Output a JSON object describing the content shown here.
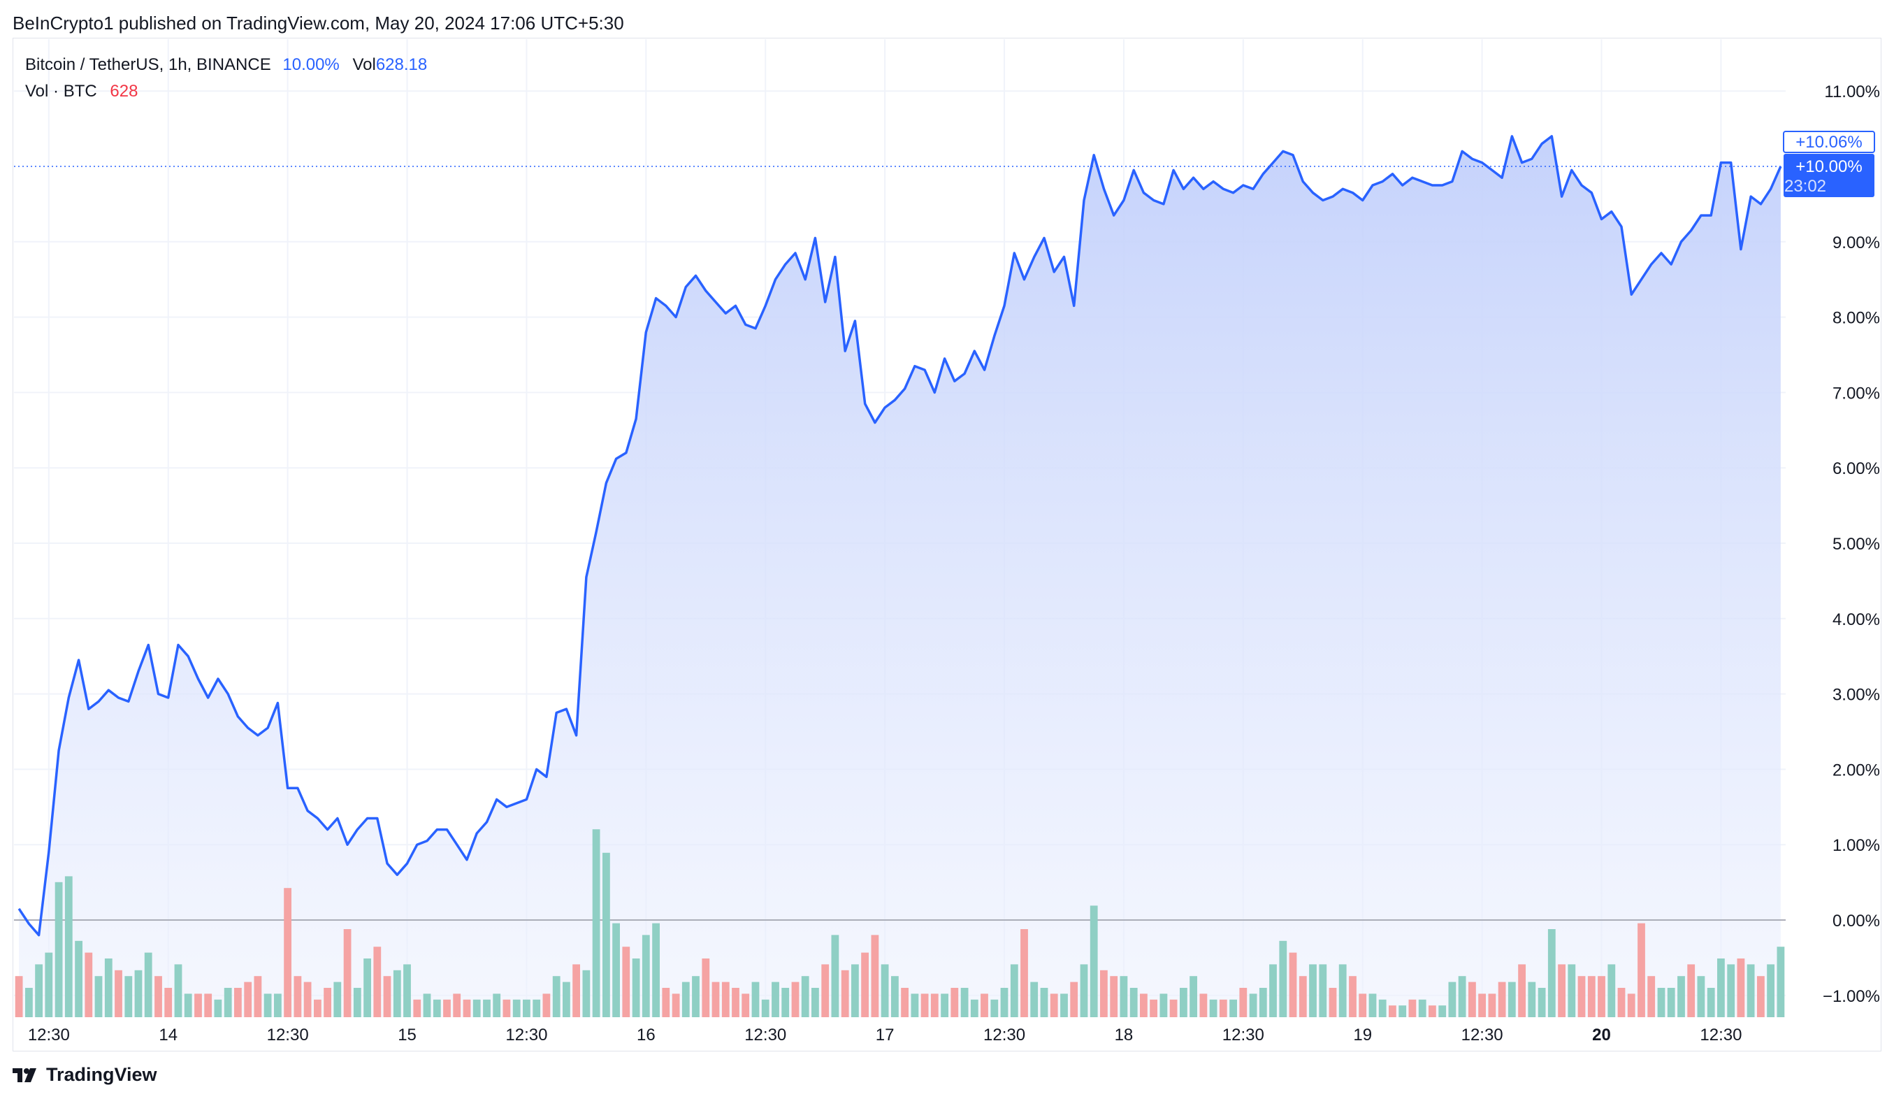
{
  "header": {
    "published_text": "BeInCrypto1 published on TradingView.com, May 20, 2024 17:06 UTC+5:30"
  },
  "legend": {
    "symbol": "Bitcoin / TetherUS, 1h, BINANCE",
    "change": "10.00%",
    "vol_label": "Vol",
    "vol_value": "628.18",
    "vol_series": "Vol · BTC",
    "vol_series_value": "628"
  },
  "price_tags": {
    "top": "+10.06%",
    "current": "+10.00%",
    "countdown": "23:02"
  },
  "footer": {
    "brand": "TradingView"
  },
  "colors": {
    "line": "#2962ff",
    "area_top": "#c5d3fb",
    "volume_up": "#8fcfc4",
    "volume_down": "#f5a3a3",
    "grid": "#f0f3fa",
    "zero_line": "#9598a1"
  },
  "chart_data": {
    "type": "line",
    "title": "Bitcoin / TetherUS, 1h, BINANCE",
    "ylabel": "",
    "xlabel": "",
    "ylim": [
      -1.2,
      11.3
    ],
    "y_ticks": [
      "11.00%",
      "9.00%",
      "8.00%",
      "7.00%",
      "6.00%",
      "5.00%",
      "4.00%",
      "3.00%",
      "2.00%",
      "1.00%",
      "0.00%",
      "−1.00%"
    ],
    "y_tick_values": [
      11,
      9,
      8,
      7,
      6,
      5,
      4,
      3,
      2,
      1,
      0,
      -1
    ],
    "x_ticks": [
      "12:30",
      "14",
      "12:30",
      "15",
      "12:30",
      "16",
      "12:30",
      "17",
      "12:30",
      "18",
      "12:30",
      "19",
      "12:30",
      "20",
      "12:30"
    ],
    "x_tick_bold": [
      false,
      false,
      false,
      false,
      false,
      false,
      false,
      false,
      false,
      false,
      false,
      false,
      false,
      true,
      false
    ],
    "x_tick_index": [
      3,
      15,
      27,
      39,
      51,
      63,
      75,
      87,
      99,
      111,
      123,
      135,
      147,
      159,
      171
    ],
    "grid": true,
    "series": [
      {
        "values": [
          0.15,
          -0.05,
          -0.2,
          0.9,
          2.25,
          2.95,
          3.45,
          2.8,
          2.9,
          3.05,
          2.95,
          2.9,
          3.3,
          3.65,
          3.0,
          2.95,
          3.65,
          3.5,
          3.2,
          2.95,
          3.2,
          3.0,
          2.7,
          2.55,
          2.45,
          2.55,
          2.88,
          1.75,
          1.75,
          1.45,
          1.35,
          1.2,
          1.35,
          1.0,
          1.2,
          1.35,
          1.35,
          0.75,
          0.6,
          0.75,
          1.0,
          1.05,
          1.2,
          1.2,
          1.0,
          0.8,
          1.15,
          1.3,
          1.6,
          1.5,
          1.55,
          1.6,
          2.0,
          1.9,
          2.75,
          2.8,
          2.45,
          4.55,
          5.15,
          5.8,
          6.12,
          6.2,
          6.65,
          7.8,
          8.25,
          8.15,
          8.0,
          8.4,
          8.55,
          8.35,
          8.2,
          8.05,
          8.15,
          7.9,
          7.85,
          8.15,
          8.5,
          8.7,
          8.85,
          8.5,
          9.05,
          8.2,
          8.8,
          7.55,
          7.95,
          6.85,
          6.6,
          6.8,
          6.9,
          7.05,
          7.35,
          7.3,
          7.0,
          7.45,
          7.15,
          7.25,
          7.55,
          7.3,
          7.75,
          8.15,
          8.85,
          8.5,
          8.8,
          9.05,
          8.6,
          8.8,
          8.15,
          9.55,
          10.15,
          9.7,
          9.35,
          9.55,
          9.95,
          9.65,
          9.55,
          9.5,
          9.95,
          9.7,
          9.85,
          9.7,
          9.8,
          9.7,
          9.65,
          9.75,
          9.7,
          9.9,
          10.05,
          10.2,
          10.15,
          9.8,
          9.65,
          9.55,
          9.6,
          9.7,
          9.65,
          9.55,
          9.75,
          9.8,
          9.9,
          9.75,
          9.85,
          9.8,
          9.75,
          9.75,
          9.8,
          10.2,
          10.1,
          10.05,
          9.95,
          9.85,
          10.4,
          10.05,
          10.1,
          10.3,
          10.4,
          9.6,
          9.95,
          9.75,
          9.65,
          9.3,
          9.4,
          9.2,
          8.3,
          8.5,
          8.7,
          8.85,
          8.7,
          9.0,
          9.15,
          9.35,
          9.35,
          10.05,
          10.05,
          8.9,
          9.6,
          9.5,
          9.7,
          10.0
        ]
      }
    ],
    "volume": [
      0.35,
      0.25,
      0.45,
      0.55,
      1.15,
      1.2,
      0.65,
      0.55,
      0.35,
      0.5,
      0.4,
      0.35,
      0.4,
      0.55,
      0.35,
      0.25,
      0.45,
      0.2,
      0.2,
      0.2,
      0.15,
      0.25,
      0.25,
      0.3,
      0.35,
      0.2,
      0.2,
      1.1,
      0.35,
      0.3,
      0.15,
      0.25,
      0.3,
      0.75,
      0.25,
      0.5,
      0.6,
      0.35,
      0.4,
      0.45,
      0.15,
      0.2,
      0.15,
      0.15,
      0.2,
      0.15,
      0.15,
      0.15,
      0.2,
      0.15,
      0.15,
      0.15,
      0.15,
      0.2,
      0.35,
      0.3,
      0.45,
      0.4,
      1.6,
      1.4,
      0.8,
      0.6,
      0.5,
      0.7,
      0.8,
      0.25,
      0.2,
      0.3,
      0.35,
      0.5,
      0.3,
      0.3,
      0.25,
      0.2,
      0.3,
      0.15,
      0.3,
      0.25,
      0.3,
      0.35,
      0.25,
      0.45,
      0.7,
      0.4,
      0.45,
      0.55,
      0.7,
      0.45,
      0.35,
      0.25,
      0.2,
      0.2,
      0.2,
      0.2,
      0.25,
      0.25,
      0.15,
      0.2,
      0.15,
      0.25,
      0.45,
      0.75,
      0.3,
      0.25,
      0.2,
      0.2,
      0.3,
      0.45,
      0.95,
      0.4,
      0.35,
      0.35,
      0.25,
      0.2,
      0.15,
      0.2,
      0.15,
      0.25,
      0.35,
      0.2,
      0.15,
      0.15,
      0.15,
      0.25,
      0.2,
      0.25,
      0.45,
      0.65,
      0.55,
      0.35,
      0.45,
      0.45,
      0.25,
      0.45,
      0.35,
      0.2,
      0.2,
      0.15,
      0.1,
      0.1,
      0.15,
      0.15,
      0.1,
      0.1,
      0.3,
      0.35,
      0.3,
      0.2,
      0.2,
      0.3,
      0.3,
      0.45,
      0.3,
      0.25,
      0.75,
      0.45,
      0.45,
      0.35,
      0.35,
      0.35,
      0.45,
      0.25,
      0.2,
      0.8,
      0.35,
      0.25,
      0.25,
      0.35,
      0.45,
      0.35,
      0.25,
      0.5,
      0.45,
      0.5,
      0.45,
      0.35,
      0.45,
      0.6
    ],
    "volume_up": [
      false,
      true,
      true,
      true,
      true,
      true,
      true,
      false,
      true,
      true,
      false,
      true,
      true,
      true,
      false,
      false,
      true,
      true,
      false,
      false,
      true,
      true,
      false,
      false,
      false,
      true,
      true,
      false,
      false,
      false,
      false,
      false,
      true,
      false,
      true,
      true,
      false,
      false,
      true,
      true,
      false,
      true,
      true,
      false,
      false,
      false,
      true,
      true,
      true,
      false,
      true,
      true,
      true,
      false,
      true,
      true,
      false,
      true,
      true,
      true,
      true,
      false,
      true,
      true,
      true,
      false,
      false,
      true,
      true,
      false,
      false,
      false,
      false,
      false,
      true,
      true,
      true,
      true,
      false,
      true,
      true,
      false,
      true,
      false,
      true,
      false,
      false,
      true,
      true,
      false,
      true,
      false,
      false,
      true,
      false,
      true,
      true,
      false,
      true,
      true,
      true,
      false,
      true,
      true,
      false,
      true,
      false,
      true,
      true,
      false,
      false,
      true,
      true,
      false,
      false,
      true,
      false,
      true,
      true,
      false,
      true,
      false,
      true,
      false,
      true,
      true,
      true,
      true,
      false,
      false,
      true,
      true,
      false,
      true,
      false,
      false,
      true,
      true,
      false,
      true,
      false,
      true,
      false,
      true,
      true,
      true,
      false,
      false,
      false,
      false,
      true,
      false,
      true,
      true,
      true,
      false,
      true,
      false,
      false,
      false,
      true,
      false,
      false,
      false,
      false,
      true,
      true,
      true,
      false,
      true,
      true,
      true,
      true,
      false,
      true,
      false,
      true,
      true,
      false,
      false
    ]
  }
}
